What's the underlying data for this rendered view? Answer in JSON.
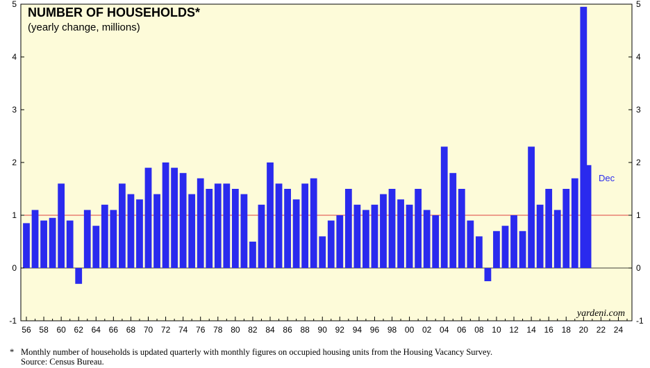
{
  "chart_data": {
    "type": "bar",
    "title": "NUMBER OF HOUSEHOLDS*",
    "subtitle": "(yearly change, millions)",
    "xlabel": "",
    "ylabel": "",
    "ylim": [
      -1,
      5
    ],
    "yticks": [
      "-1",
      "0",
      "1",
      "2",
      "3",
      "4",
      "5"
    ],
    "xlim": [
      1956,
      2025
    ],
    "xticks": [
      "56",
      "58",
      "60",
      "62",
      "64",
      "66",
      "68",
      "70",
      "72",
      "74",
      "76",
      "78",
      "80",
      "82",
      "84",
      "86",
      "88",
      "90",
      "92",
      "94",
      "96",
      "98",
      "00",
      "02",
      "04",
      "06",
      "08",
      "10",
      "12",
      "14",
      "16",
      "18",
      "20",
      "22",
      "24"
    ],
    "reference_line": 1,
    "latest_label": "Dec",
    "grid": false,
    "colors": {
      "bars": "#2a2aee",
      "plot_background": "#fdfbd9",
      "reference_line": "#e04040"
    },
    "series": [
      {
        "x": [
          1956,
          1957,
          1958,
          1959,
          1960,
          1961,
          1962,
          1963,
          1964,
          1965,
          1966,
          1967,
          1968,
          1969,
          1970,
          1971,
          1972,
          1973,
          1974,
          1975,
          1976,
          1977,
          1978,
          1979,
          1980,
          1981,
          1982,
          1983,
          1984,
          1985,
          1986,
          1987,
          1988,
          1989,
          1990,
          1991,
          1992,
          1993,
          1994,
          1995,
          1996,
          1997,
          1998,
          1999,
          2000,
          2001,
          2002,
          2003,
          2004,
          2005,
          2006,
          2007,
          2008,
          2009,
          2010,
          2011,
          2012,
          2013,
          2014,
          2015,
          2016,
          2017,
          2018,
          2019,
          2020,
          2020.5
        ],
        "values": [
          0.85,
          1.1,
          0.9,
          0.95,
          1.6,
          0.9,
          -0.3,
          1.1,
          0.8,
          1.2,
          1.1,
          1.6,
          1.4,
          1.3,
          1.9,
          1.4,
          2.0,
          1.9,
          1.8,
          1.4,
          1.7,
          1.5,
          1.6,
          1.6,
          1.5,
          1.4,
          0.5,
          1.2,
          2.0,
          1.6,
          1.5,
          1.3,
          1.6,
          1.7,
          0.6,
          0.9,
          1.0,
          1.5,
          1.2,
          1.1,
          1.2,
          1.4,
          1.5,
          1.3,
          1.2,
          1.5,
          1.1,
          1.0,
          2.3,
          1.8,
          1.5,
          0.9,
          0.6,
          -0.25,
          0.7,
          0.8,
          1.0,
          0.7,
          2.3,
          1.2,
          1.5,
          1.1,
          1.5,
          1.7,
          4.95,
          1.95
        ]
      }
    ]
  },
  "credit": "yardeni.com",
  "footnote": {
    "marker": "*",
    "text": "Monthly number of households is updated quarterly with monthly figures on occupied housing units from the Housing Vacancy Survey.",
    "source": "Source: Census Bureau."
  }
}
